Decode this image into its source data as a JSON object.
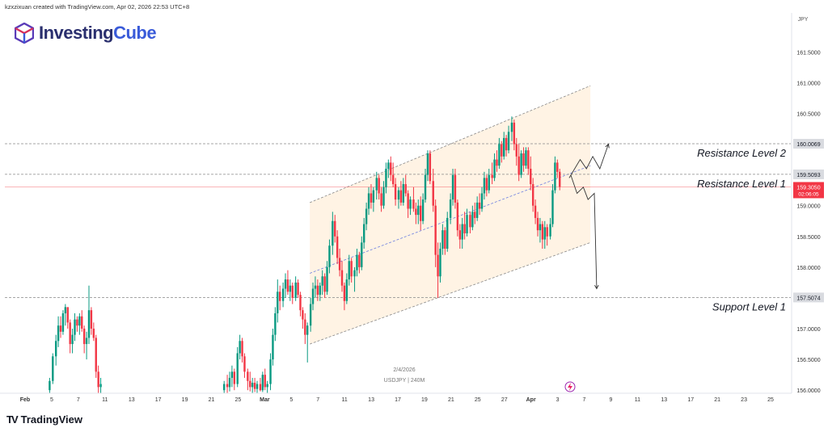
{
  "header": {
    "attribution": "kzxzixuan created with TradingView.com, Apr 02, 2026 22:53 UTC+8"
  },
  "logo": {
    "part1": "Investing",
    "part2": "Cube"
  },
  "footer": {
    "brand": "TradingView"
  },
  "watermark": {
    "date": "2/4/2026",
    "symbol": "USDJPY | 240M"
  },
  "colors": {
    "up": "#089981",
    "down": "#f23645",
    "channel_fill": "#fff3e4",
    "annotation": "#333333",
    "price_badge": "#f23645"
  },
  "chart_data": {
    "type": "candlestick",
    "currency": "JPY",
    "y_ticks": [
      156.0,
      156.5,
      157.0,
      157.5,
      158.0,
      158.5,
      159.0,
      159.5,
      160.0,
      160.5,
      161.0,
      161.5
    ],
    "y_tick_labels": [
      "156.0000",
      "156.5000",
      "157.0000",
      "157.5000",
      "158.0000",
      "158.5000",
      "159.0000",
      "159.5000",
      "160.0000",
      "160.5000",
      "161.0000",
      "161.5000"
    ],
    "ylim": [
      155.95,
      161.95
    ],
    "x_labels": [
      "Feb",
      "5",
      "7",
      "11",
      "13",
      "17",
      "19",
      "21",
      "25",
      "Mar",
      "5",
      "7",
      "11",
      "13",
      "17",
      "19",
      "21",
      "25",
      "27",
      "Apr",
      "3",
      "7",
      "9",
      "11",
      "13",
      "17",
      "21",
      "23",
      "25"
    ],
    "levels": [
      {
        "name": "Resistance Level 2",
        "value": 160.0069,
        "label": "160.0069"
      },
      {
        "name": "Resistance Level 1",
        "value": 159.5093,
        "label": "159.5093"
      },
      {
        "name": "Support Level 1",
        "value": 157.5074,
        "label": "157.5074"
      }
    ],
    "current_price": {
      "value": 159.305,
      "label": "159.3050",
      "countdown": "02:06:05"
    },
    "channel": {
      "upper": [
        [
          0.388,
          159.05
        ],
        [
          0.745,
          160.95
        ]
      ],
      "lower": [
        [
          0.388,
          156.75
        ],
        [
          0.745,
          158.4
        ]
      ],
      "mid": [
        [
          0.388,
          157.9
        ],
        [
          0.745,
          159.65
        ]
      ]
    },
    "projections": [
      {
        "direction": "up",
        "points": [
          [
            0.718,
            159.45
          ],
          [
            0.732,
            159.75
          ],
          [
            0.74,
            159.6
          ],
          [
            0.748,
            159.8
          ],
          [
            0.757,
            159.6
          ],
          [
            0.768,
            160.0
          ]
        ]
      },
      {
        "direction": "down",
        "points": [
          [
            0.72,
            159.5
          ],
          [
            0.728,
            159.2
          ],
          [
            0.736,
            159.3
          ],
          [
            0.742,
            159.1
          ],
          [
            0.75,
            159.2
          ],
          [
            0.753,
            157.65
          ]
        ]
      }
    ],
    "candles": [
      [
        0.057,
        156.0,
        156.2,
        155.95,
        156.15
      ],
      [
        0.061,
        156.15,
        156.6,
        156.1,
        156.55
      ],
      [
        0.065,
        156.55,
        156.9,
        156.4,
        156.8
      ],
      [
        0.068,
        156.8,
        157.2,
        156.7,
        157.05
      ],
      [
        0.071,
        157.05,
        157.2,
        156.85,
        156.95
      ],
      [
        0.074,
        156.95,
        157.3,
        156.9,
        157.25
      ],
      [
        0.077,
        157.25,
        157.4,
        157.05,
        157.35
      ],
      [
        0.08,
        157.35,
        157.35,
        157.0,
        157.1
      ],
      [
        0.083,
        157.1,
        157.15,
        156.6,
        156.75
      ],
      [
        0.086,
        156.75,
        157.0,
        156.6,
        156.9
      ],
      [
        0.089,
        156.9,
        157.25,
        156.8,
        157.15
      ],
      [
        0.092,
        157.15,
        157.2,
        156.95,
        157.05
      ],
      [
        0.095,
        157.05,
        157.25,
        156.9,
        157.2
      ],
      [
        0.098,
        157.2,
        157.3,
        156.95,
        157.0
      ],
      [
        0.101,
        157.0,
        157.05,
        156.6,
        156.75
      ],
      [
        0.104,
        156.75,
        156.95,
        156.5,
        156.85
      ],
      [
        0.107,
        156.85,
        157.7,
        156.75,
        157.3
      ],
      [
        0.11,
        157.3,
        157.35,
        156.9,
        157.0
      ],
      [
        0.113,
        157.0,
        157.1,
        156.8,
        156.85
      ],
      [
        0.116,
        156.85,
        156.9,
        156.2,
        156.3
      ],
      [
        0.119,
        156.3,
        156.4,
        155.95,
        156.05
      ],
      [
        0.122,
        156.05,
        156.2,
        155.95,
        156.1
      ],
      [
        0.279,
        156.0,
        156.15,
        155.95,
        156.1
      ],
      [
        0.283,
        156.1,
        156.25,
        155.95,
        156.05
      ],
      [
        0.286,
        156.05,
        156.3,
        155.98,
        156.2
      ],
      [
        0.289,
        156.2,
        156.4,
        156.05,
        156.3
      ],
      [
        0.292,
        156.3,
        156.35,
        156.0,
        156.1
      ],
      [
        0.296,
        156.1,
        156.7,
        156.05,
        156.6
      ],
      [
        0.299,
        156.6,
        156.9,
        156.5,
        156.8
      ],
      [
        0.302,
        156.8,
        156.85,
        156.45,
        156.55
      ],
      [
        0.305,
        156.55,
        156.6,
        156.2,
        156.3
      ],
      [
        0.309,
        156.3,
        156.35,
        156.0,
        156.15
      ],
      [
        0.312,
        156.15,
        156.3,
        155.98,
        156.05
      ],
      [
        0.315,
        156.05,
        156.2,
        155.95,
        156.12
      ],
      [
        0.318,
        156.12,
        156.2,
        155.97,
        156.02
      ],
      [
        0.321,
        156.02,
        156.15,
        155.95,
        156.1
      ],
      [
        0.325,
        156.1,
        156.2,
        155.98,
        156.0
      ],
      [
        0.328,
        156.0,
        156.3,
        155.97,
        156.25
      ],
      [
        0.331,
        156.25,
        156.35,
        156.0,
        156.05
      ],
      [
        0.334,
        156.05,
        156.15,
        155.95,
        156.1
      ],
      [
        0.338,
        156.1,
        156.6,
        156.0,
        156.5
      ],
      [
        0.341,
        156.5,
        157.0,
        156.4,
        156.9
      ],
      [
        0.344,
        156.9,
        157.35,
        156.8,
        157.25
      ],
      [
        0.347,
        157.25,
        157.8,
        157.1,
        157.6
      ],
      [
        0.35,
        157.6,
        157.7,
        157.3,
        157.45
      ],
      [
        0.354,
        157.45,
        157.75,
        157.35,
        157.65
      ],
      [
        0.357,
        157.65,
        157.9,
        157.5,
        157.8
      ],
      [
        0.36,
        157.8,
        157.95,
        157.55,
        157.6
      ],
      [
        0.363,
        157.6,
        157.8,
        157.45,
        157.7
      ],
      [
        0.366,
        157.7,
        157.75,
        157.4,
        157.5
      ],
      [
        0.37,
        157.5,
        157.85,
        157.45,
        157.75
      ],
      [
        0.373,
        157.75,
        157.8,
        157.5,
        157.55
      ],
      [
        0.376,
        157.55,
        157.6,
        157.2,
        157.3
      ],
      [
        0.379,
        157.3,
        157.35,
        157.0,
        157.15
      ],
      [
        0.382,
        157.15,
        157.25,
        156.75,
        156.9
      ],
      [
        0.385,
        156.9,
        157.1,
        156.45,
        157.05
      ],
      [
        0.389,
        157.05,
        157.5,
        156.95,
        157.4
      ],
      [
        0.392,
        157.4,
        157.75,
        157.3,
        157.65
      ],
      [
        0.395,
        157.65,
        157.85,
        157.5,
        157.7
      ],
      [
        0.398,
        157.7,
        157.8,
        157.45,
        157.55
      ],
      [
        0.401,
        157.55,
        157.75,
        157.45,
        157.7
      ],
      [
        0.404,
        157.7,
        157.95,
        157.55,
        157.85
      ],
      [
        0.407,
        157.85,
        157.9,
        157.5,
        157.6
      ],
      [
        0.41,
        157.6,
        158.1,
        157.55,
        158.0
      ],
      [
        0.413,
        158.0,
        158.45,
        157.9,
        158.35
      ],
      [
        0.417,
        158.35,
        158.9,
        158.2,
        158.75
      ],
      [
        0.42,
        158.75,
        158.85,
        158.4,
        158.5
      ],
      [
        0.423,
        158.5,
        158.6,
        158.05,
        158.15
      ],
      [
        0.426,
        158.15,
        158.3,
        157.85,
        157.95
      ],
      [
        0.429,
        157.95,
        158.1,
        157.6,
        157.7
      ],
      [
        0.432,
        157.7,
        157.75,
        157.3,
        157.45
      ],
      [
        0.435,
        157.45,
        157.9,
        157.4,
        157.8
      ],
      [
        0.438,
        157.8,
        158.2,
        157.7,
        158.1
      ],
      [
        0.441,
        158.1,
        158.15,
        157.75,
        157.85
      ],
      [
        0.445,
        157.85,
        158.0,
        157.6,
        157.95
      ],
      [
        0.448,
        157.95,
        158.3,
        157.85,
        158.2
      ],
      [
        0.451,
        158.2,
        158.25,
        157.9,
        158.0
      ],
      [
        0.454,
        158.0,
        158.5,
        157.95,
        158.4
      ],
      [
        0.457,
        158.4,
        158.8,
        158.3,
        158.7
      ],
      [
        0.46,
        158.7,
        159.05,
        158.6,
        158.95
      ],
      [
        0.463,
        158.95,
        159.3,
        158.85,
        159.2
      ],
      [
        0.466,
        159.2,
        159.35,
        158.95,
        159.05
      ],
      [
        0.469,
        159.05,
        159.3,
        158.9,
        159.25
      ],
      [
        0.473,
        159.25,
        159.55,
        159.1,
        159.45
      ],
      [
        0.476,
        159.45,
        159.5,
        159.1,
        159.2
      ],
      [
        0.479,
        159.2,
        159.3,
        158.9,
        159.0
      ],
      [
        0.482,
        159.0,
        159.4,
        158.95,
        159.3
      ],
      [
        0.485,
        159.3,
        159.7,
        159.2,
        159.6
      ],
      [
        0.488,
        159.6,
        159.75,
        159.45,
        159.7
      ],
      [
        0.491,
        159.7,
        159.8,
        159.4,
        159.5
      ],
      [
        0.494,
        159.5,
        159.7,
        159.3,
        159.35
      ],
      [
        0.497,
        159.35,
        159.45,
        159.0,
        159.1
      ],
      [
        0.501,
        159.1,
        159.3,
        158.95,
        159.25
      ],
      [
        0.504,
        159.25,
        159.4,
        159.0,
        159.05
      ],
      [
        0.507,
        159.05,
        159.45,
        159.0,
        159.35
      ],
      [
        0.51,
        159.35,
        159.5,
        159.15,
        159.2
      ],
      [
        0.513,
        159.2,
        159.25,
        158.8,
        158.95
      ],
      [
        0.516,
        158.95,
        159.15,
        158.85,
        159.1
      ],
      [
        0.52,
        159.1,
        159.3,
        158.9,
        158.95
      ],
      [
        0.523,
        158.95,
        159.05,
        158.7,
        158.85
      ],
      [
        0.526,
        158.85,
        159.1,
        158.7,
        159.0
      ],
      [
        0.529,
        159.0,
        159.15,
        158.6,
        158.75
      ],
      [
        0.532,
        158.75,
        159.2,
        158.7,
        159.1
      ],
      [
        0.535,
        159.1,
        159.6,
        159.05,
        159.5
      ],
      [
        0.538,
        159.5,
        159.9,
        159.4,
        159.85
      ],
      [
        0.541,
        159.85,
        159.9,
        159.35,
        159.4
      ],
      [
        0.545,
        159.4,
        159.6,
        158.9,
        159.0
      ],
      [
        0.548,
        159.0,
        159.1,
        158.0,
        158.2
      ],
      [
        0.551,
        158.2,
        158.4,
        157.5,
        157.85
      ],
      [
        0.554,
        157.85,
        158.4,
        157.75,
        158.3
      ],
      [
        0.557,
        158.3,
        158.7,
        158.2,
        158.6
      ],
      [
        0.56,
        158.6,
        158.65,
        158.2,
        158.3
      ],
      [
        0.563,
        158.3,
        158.9,
        158.25,
        158.8
      ],
      [
        0.567,
        158.8,
        159.2,
        158.7,
        159.1
      ],
      [
        0.57,
        159.1,
        159.6,
        159.0,
        159.5
      ],
      [
        0.573,
        159.5,
        159.6,
        158.95,
        159.05
      ],
      [
        0.576,
        159.05,
        159.1,
        158.5,
        158.6
      ],
      [
        0.579,
        158.6,
        158.7,
        158.3,
        158.45
      ],
      [
        0.582,
        158.45,
        158.8,
        158.3,
        158.7
      ],
      [
        0.585,
        158.7,
        158.9,
        158.45,
        158.55
      ],
      [
        0.588,
        158.55,
        158.95,
        158.5,
        158.85
      ],
      [
        0.592,
        158.85,
        158.9,
        158.55,
        158.65
      ],
      [
        0.595,
        158.65,
        159.0,
        158.6,
        158.9
      ],
      [
        0.598,
        158.9,
        159.05,
        158.7,
        158.8
      ],
      [
        0.601,
        158.8,
        159.15,
        158.75,
        159.05
      ],
      [
        0.604,
        159.05,
        159.2,
        158.85,
        158.95
      ],
      [
        0.607,
        158.95,
        159.3,
        158.9,
        159.2
      ],
      [
        0.61,
        159.2,
        159.55,
        159.1,
        159.45
      ],
      [
        0.613,
        159.45,
        159.5,
        159.15,
        159.25
      ],
      [
        0.616,
        159.25,
        159.6,
        159.2,
        159.5
      ],
      [
        0.62,
        159.5,
        159.7,
        159.35,
        159.45
      ],
      [
        0.623,
        159.45,
        159.85,
        159.4,
        159.75
      ],
      [
        0.626,
        159.75,
        159.9,
        159.55,
        159.65
      ],
      [
        0.629,
        159.65,
        160.1,
        159.6,
        160.0
      ],
      [
        0.632,
        160.0,
        160.05,
        159.7,
        159.8
      ],
      [
        0.635,
        159.8,
        160.2,
        159.75,
        160.1
      ],
      [
        0.638,
        160.1,
        160.15,
        159.8,
        159.9
      ],
      [
        0.641,
        159.9,
        160.3,
        159.85,
        160.2
      ],
      [
        0.645,
        160.2,
        160.45,
        160.05,
        160.35
      ],
      [
        0.648,
        160.35,
        160.4,
        159.9,
        160.0
      ],
      [
        0.651,
        160.0,
        160.1,
        159.65,
        159.8
      ],
      [
        0.654,
        159.8,
        160.0,
        159.4,
        159.5
      ],
      [
        0.657,
        159.5,
        159.9,
        159.45,
        159.85
      ],
      [
        0.66,
        159.85,
        159.95,
        159.55,
        159.65
      ],
      [
        0.663,
        159.65,
        159.95,
        159.6,
        159.9
      ],
      [
        0.666,
        159.9,
        159.95,
        159.5,
        159.6
      ],
      [
        0.669,
        159.6,
        159.8,
        159.25,
        159.35
      ],
      [
        0.672,
        159.35,
        159.45,
        158.9,
        159.0
      ],
      [
        0.675,
        159.0,
        159.1,
        158.7,
        158.8
      ],
      [
        0.678,
        158.8,
        158.9,
        158.5,
        158.6
      ],
      [
        0.681,
        158.6,
        158.8,
        158.4,
        158.7
      ],
      [
        0.684,
        158.7,
        158.75,
        158.3,
        158.45
      ],
      [
        0.687,
        158.45,
        158.75,
        158.3,
        158.65
      ],
      [
        0.69,
        158.65,
        158.7,
        158.35,
        158.5
      ],
      [
        0.694,
        158.5,
        158.8,
        158.45,
        158.7
      ],
      [
        0.697,
        158.7,
        159.35,
        158.65,
        159.25
      ],
      [
        0.7,
        159.25,
        159.8,
        159.2,
        159.7
      ],
      [
        0.703,
        159.7,
        159.75,
        159.45,
        159.55
      ],
      [
        0.706,
        159.55,
        159.6,
        159.25,
        159.305
      ]
    ]
  }
}
